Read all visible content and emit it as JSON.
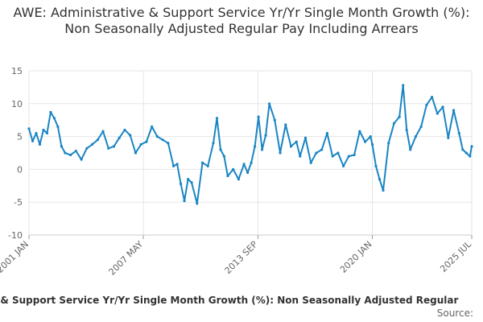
{
  "chart_data": {
    "type": "line",
    "title": "AWE: Administrative & Support Service Yr/Yr Single Month Growth (%): Non Seasonally Adjusted Regular Pay Including Arrears",
    "xlabel": "",
    "ylabel": "",
    "ylim": [
      -10,
      15
    ],
    "y_ticks": [
      "15",
      "10",
      "5",
      "0",
      "-5",
      "-10"
    ],
    "y_tick_values": [
      15,
      10,
      5,
      0,
      -5,
      -10
    ],
    "x_ticks": [
      "2001 JAN",
      "2007 MAY",
      "2013 SEP",
      "2020 JAN",
      "2025 JUL"
    ],
    "x_tick_values": [
      2001.0,
      2007.33,
      2013.67,
      2020.0,
      2025.5
    ],
    "xlim": [
      2001.0,
      2025.5
    ],
    "grid": true,
    "legend": "bottom",
    "series": [
      {
        "name": "AWE: Administrative & Support Service Yr/Yr Single Month Growth (%): Non Seasonally Adjusted Regular Pay Including Arrears",
        "color": "#1a85c4",
        "x": [
          2001.0,
          2001.2,
          2001.4,
          2001.6,
          2001.8,
          2002.0,
          2002.2,
          2002.4,
          2002.6,
          2002.8,
          2003.0,
          2003.3,
          2003.6,
          2003.9,
          2004.2,
          2004.5,
          2004.8,
          2005.1,
          2005.4,
          2005.7,
          2006.0,
          2006.3,
          2006.6,
          2006.9,
          2007.2,
          2007.5,
          2007.8,
          2008.1,
          2008.4,
          2008.7,
          2009.0,
          2009.2,
          2009.4,
          2009.6,
          2009.8,
          2010.0,
          2010.3,
          2010.6,
          2010.9,
          2011.2,
          2011.4,
          2011.6,
          2011.8,
          2012.0,
          2012.3,
          2012.6,
          2012.9,
          2013.1,
          2013.3,
          2013.5,
          2013.7,
          2013.9,
          2014.1,
          2014.3,
          2014.6,
          2014.9,
          2015.2,
          2015.5,
          2015.8,
          2016.0,
          2016.3,
          2016.6,
          2016.9,
          2017.2,
          2017.5,
          2017.8,
          2018.1,
          2018.4,
          2018.7,
          2019.0,
          2019.3,
          2019.6,
          2019.9,
          2020.0,
          2020.2,
          2020.4,
          2020.6,
          2020.9,
          2021.2,
          2021.5,
          2021.7,
          2021.9,
          2022.1,
          2022.4,
          2022.7,
          2023.0,
          2023.3,
          2023.6,
          2023.9,
          2024.2,
          2024.5,
          2024.8,
          2025.0,
          2025.2,
          2025.4,
          2025.5
        ],
        "values": [
          6.2,
          4.3,
          5.5,
          3.8,
          6.0,
          5.5,
          8.7,
          7.8,
          6.5,
          3.5,
          2.5,
          2.2,
          2.8,
          1.5,
          3.2,
          3.8,
          4.5,
          5.8,
          3.2,
          3.5,
          4.8,
          6.0,
          5.2,
          2.5,
          3.8,
          4.2,
          6.5,
          5.0,
          4.5,
          4.0,
          0.5,
          0.8,
          -2.2,
          -4.8,
          -1.5,
          -2.0,
          -5.2,
          1.0,
          0.5,
          4.0,
          7.8,
          3.0,
          2.0,
          -1.0,
          0.0,
          -1.5,
          0.8,
          -0.5,
          1.0,
          3.5,
          8.0,
          3.0,
          5.2,
          10.0,
          7.5,
          2.5,
          6.8,
          3.5,
          4.2,
          2.0,
          4.8,
          1.0,
          2.5,
          3.0,
          5.5,
          2.0,
          2.5,
          0.5,
          2.0,
          2.2,
          5.8,
          4.2,
          5.0,
          3.8,
          0.5,
          -1.5,
          -3.2,
          4.0,
          7.0,
          8.0,
          12.8,
          6.0,
          3.0,
          5.0,
          6.5,
          9.8,
          11.0,
          8.5,
          9.5,
          4.8,
          9.0,
          5.5,
          3.0,
          2.5,
          2.0,
          3.5
        ]
      }
    ],
    "legend_text": "e & Support Service Yr/Yr Single Month Growth (%): Non Seasonally Adjusted Regular",
    "source": "Source:"
  }
}
